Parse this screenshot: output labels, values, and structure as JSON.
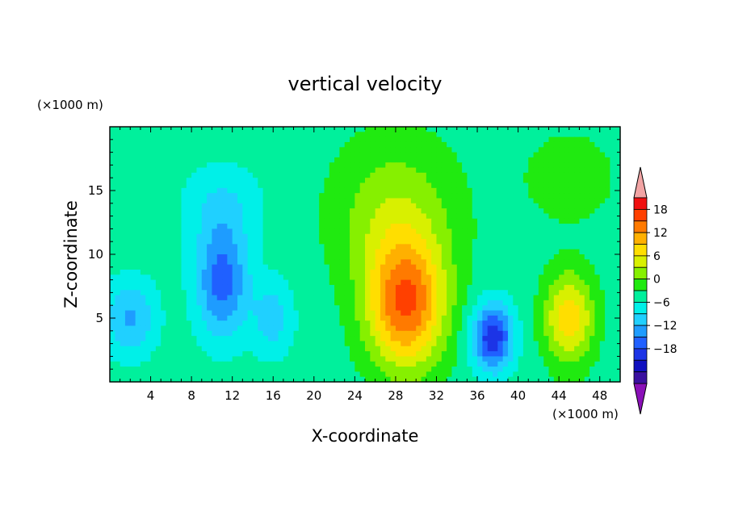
{
  "chart_data": {
    "type": "heatmap",
    "title": "vertical velocity",
    "xlabel": "X-coordinate",
    "ylabel": "Z-coordinate",
    "x_unit": "(×1000 m)",
    "y_unit": "(×1000 m)",
    "xlim": [
      0,
      50
    ],
    "ylim": [
      0,
      20
    ],
    "x_ticks": [
      "4",
      "8",
      "12",
      "16",
      "20",
      "24",
      "28",
      "32",
      "36",
      "40",
      "44",
      "48"
    ],
    "y_ticks": [
      "5",
      "10",
      "15"
    ],
    "colorbar": {
      "labels": [
        "18",
        "12",
        "6",
        "0",
        "-6",
        "-12",
        "-18"
      ],
      "levels": [
        -21,
        -18,
        -15,
        -12,
        -9,
        -6,
        -3,
        0,
        3,
        6,
        9,
        12,
        15,
        18,
        21
      ],
      "colors": [
        "#8a10b8",
        "#3a10a0",
        "#1010c0",
        "#1c34e6",
        "#2060ff",
        "#1e9cff",
        "#20d0ff",
        "#00f0e8",
        "#00f09c",
        "#20ea10",
        "#86f000",
        "#d8f000",
        "#ffde00",
        "#ffb000",
        "#ff7a00",
        "#ff4000",
        "#f01010",
        "#f2a4a4"
      ]
    },
    "field": {
      "background": 1.5,
      "features": [
        {
          "x": 29,
          "z": 6,
          "amp": 19,
          "sx": 3.8,
          "sz": 5.0
        },
        {
          "x": 28,
          "z": 13,
          "amp": 7,
          "sx": 6.0,
          "sz": 6.0
        },
        {
          "x": 45,
          "z": 5,
          "amp": 13,
          "sx": 2.4,
          "sz": 3.5
        },
        {
          "x": 37.5,
          "z": 3.5,
          "amp": -16,
          "sx": 2.0,
          "sz": 2.6
        },
        {
          "x": 11,
          "z": 8,
          "amp": -12,
          "sx": 2.6,
          "sz": 4.5
        },
        {
          "x": 2,
          "z": 5,
          "amp": -8,
          "sx": 2.5,
          "sz": 3.0
        },
        {
          "x": 16,
          "z": 5,
          "amp": -6,
          "sx": 2.0,
          "sz": 3.0
        },
        {
          "x": 11,
          "z": 14,
          "amp": -4,
          "sx": 4.0,
          "sz": 3.0
        },
        {
          "x": 45,
          "z": 16,
          "amp": 3,
          "sx": 5.0,
          "sz": 4.0
        }
      ]
    }
  }
}
